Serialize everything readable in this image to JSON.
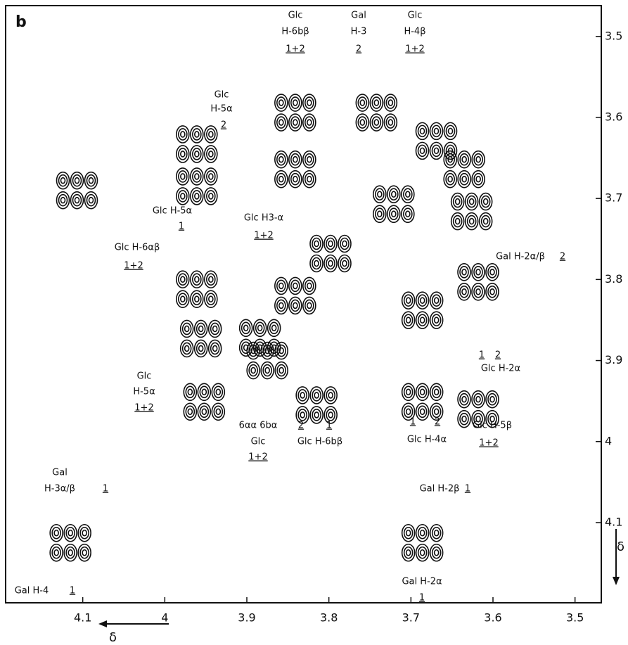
{
  "chart_data": {
    "type": "contour",
    "panel": "b",
    "xlim": [
      4.194,
      3.468
    ],
    "ylim": [
      3.462,
      4.199
    ],
    "xticks": [
      4.1,
      4.0,
      3.9,
      3.8,
      3.7,
      3.6,
      3.5
    ],
    "yticks": [
      3.5,
      3.6,
      3.7,
      3.8,
      3.9,
      4.0,
      4.1
    ],
    "x_axis_label": "δ",
    "y_axis_label": "δ",
    "peaks": {
      "x": [
        4.107,
        3.961,
        3.961,
        3.961,
        3.956,
        3.952,
        3.841,
        3.841,
        3.742,
        3.669,
        3.721,
        3.798,
        3.841,
        3.884,
        3.635,
        3.875,
        3.815,
        3.686,
        3.618,
        3.626,
        3.686,
        3.618,
        3.686,
        4.115
      ],
      "y": [
        3.69,
        3.633,
        3.685,
        3.812,
        3.873,
        3.951,
        3.594,
        3.664,
        3.594,
        3.629,
        3.707,
        3.768,
        3.82,
        3.872,
        3.664,
        3.9,
        3.955,
        3.838,
        3.803,
        3.716,
        3.951,
        3.96,
        4.125,
        4.125
      ]
    },
    "annotations": [
      "Glc",
      "H-5α",
      "2",
      "Glc H-5α",
      "1",
      "Glc H-6αβ",
      "1+2",
      "Glc",
      "H-5α",
      "1+2",
      "Glc",
      "H-6bβ",
      "1+2",
      "Gal",
      "H-3",
      "2",
      "Glc",
      "H-4β",
      "1+2",
      "Glc H3-α",
      "1+2",
      "Gal H-2α/β",
      "2",
      "1",
      "2",
      "Glc H-2α",
      "6αα 6bα",
      "Glc",
      "1+2",
      "2",
      "1",
      "Glc H-6bβ",
      "1",
      "2",
      "Glc H-4α",
      "Glc H-5β",
      "1+2",
      "Gal",
      "H-3α/β",
      "1",
      "Gal H-2β",
      "1",
      "Gal H-2α",
      "1",
      "Gal H-4",
      "1"
    ]
  }
}
